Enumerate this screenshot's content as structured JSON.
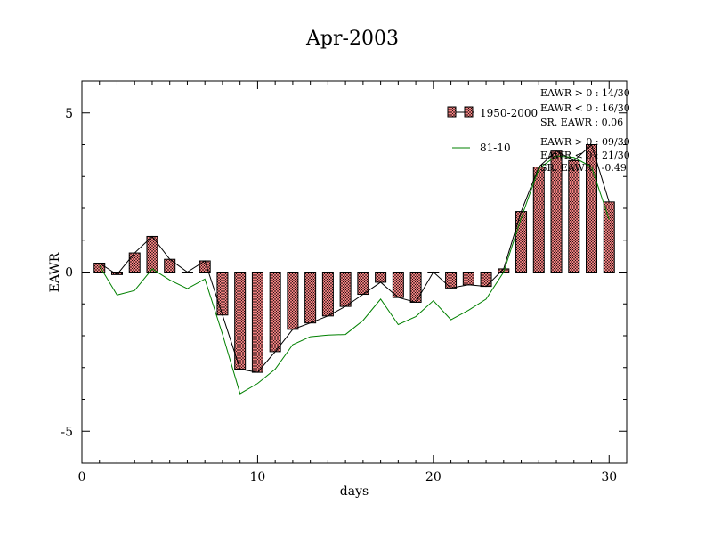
{
  "chart_data": {
    "type": "bar",
    "title": "Apr-2003",
    "xlabel": "days",
    "ylabel": "EAWR",
    "xlim": [
      0,
      31
    ],
    "ylim": [
      -6,
      6
    ],
    "x_ticks": [
      0,
      10,
      20,
      30
    ],
    "y_ticks": [
      -5,
      0,
      5
    ],
    "grid": false,
    "legend_position": "top-right",
    "colors": {
      "bar_fill": "#f08080",
      "bar_hatch": "#000000",
      "line_black": "#000000",
      "line_green": "#008000"
    },
    "days": [
      1,
      2,
      3,
      4,
      5,
      6,
      7,
      8,
      9,
      10,
      11,
      12,
      13,
      14,
      15,
      16,
      17,
      18,
      19,
      20,
      21,
      22,
      23,
      24,
      25,
      26,
      27,
      28,
      29,
      30
    ],
    "series": [
      {
        "name": "1950-2000",
        "kind": "bar",
        "values": [
          0.28,
          -0.08,
          0.6,
          1.12,
          0.4,
          0.0,
          0.35,
          -1.35,
          -3.05,
          -3.15,
          -2.5,
          -1.8,
          -1.6,
          -1.38,
          -1.08,
          -0.7,
          -0.32,
          -0.8,
          -0.95,
          0.0,
          -0.5,
          -0.4,
          -0.45,
          0.1,
          1.9,
          3.3,
          3.8,
          3.5,
          4.0,
          2.2
        ]
      },
      {
        "name": "81-10",
        "kind": "line",
        "color": "#008000",
        "values": [
          0.2,
          -0.72,
          -0.58,
          0.1,
          -0.25,
          -0.52,
          -0.22,
          -1.95,
          -3.82,
          -3.5,
          -3.05,
          -2.28,
          -2.03,
          -1.98,
          -1.96,
          -1.52,
          -0.85,
          -1.65,
          -1.4,
          -0.9,
          -1.5,
          -1.2,
          -0.85,
          0.0,
          1.7,
          3.25,
          3.65,
          3.6,
          3.3,
          1.65
        ]
      }
    ],
    "stats_1950_2000": [
      "EAWR > 0 : 14/30",
      "EAWR < 0 : 16/30",
      "SR. EAWR :  0.06"
    ],
    "stats_81_10": [
      "EAWR > 0 : 09/30",
      "EAWR < 0 : 21/30",
      "SR. EAWR : -0.49"
    ]
  }
}
